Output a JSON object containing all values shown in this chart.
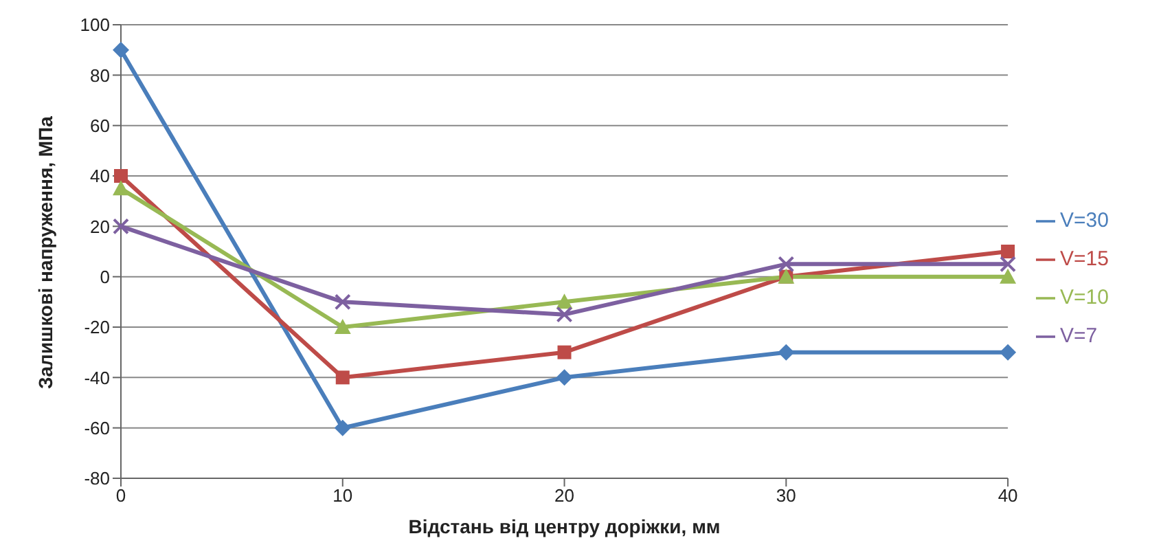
{
  "chart_data": {
    "type": "line",
    "xlabel": "Відстань від центру доріжки, мм",
    "ylabel": "Залишкові напруження, МПа",
    "categories": [
      "0",
      "10",
      "20",
      "30",
      "40"
    ],
    "series": [
      {
        "name": "V=30",
        "color": "#4a7ebb",
        "marker": "diamond",
        "values": [
          90,
          -60,
          -40,
          -30,
          -30
        ]
      },
      {
        "name": "V=15",
        "color": "#be4b48",
        "marker": "square",
        "values": [
          40,
          -40,
          -30,
          0,
          10
        ]
      },
      {
        "name": "V=10",
        "color": "#98b954",
        "marker": "triangle",
        "values": [
          35,
          -20,
          -10,
          0,
          0
        ]
      },
      {
        "name": "V=7",
        "color": "#7d60a0",
        "marker": "cross",
        "values": [
          20,
          -10,
          -15,
          5,
          5
        ]
      }
    ],
    "ylim": [
      -80,
      100
    ],
    "yticks": [
      -80,
      -60,
      -40,
      -20,
      0,
      20,
      40,
      60,
      80,
      100
    ],
    "grid": "y",
    "legend": "right"
  }
}
